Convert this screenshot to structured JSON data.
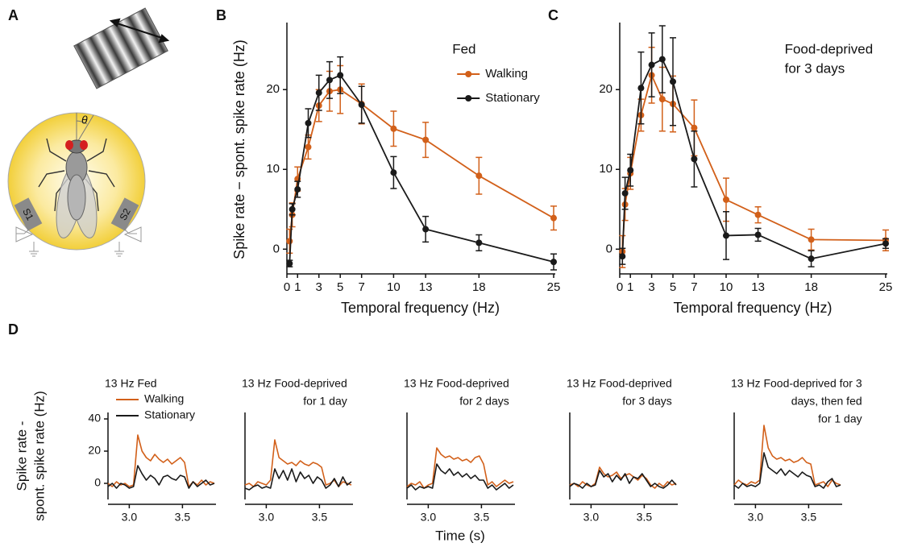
{
  "illustration": {
    "label": "A",
    "sensor_1": "S1",
    "sensor_2": "S2",
    "angle": "θ"
  },
  "chart_data": [
    {
      "label": "B",
      "type": "line",
      "x": [
        0.25,
        0.5,
        1,
        2,
        3,
        4,
        5,
        7,
        10,
        13,
        18,
        25
      ],
      "xlim": [
        0,
        25
      ],
      "xticks": [
        0,
        1,
        3,
        5,
        7,
        10,
        13,
        18,
        25
      ],
      "ylim": [
        -3,
        28
      ],
      "yticks": [
        0,
        10,
        20
      ],
      "xlabel": "Temporal frequency (Hz)",
      "ylabel": [
        "Spike rate − spont. spike rate (Hz)"
      ],
      "annotation": [
        "Fed"
      ],
      "series": [
        {
          "name": "Walking",
          "color": "#d2601a",
          "values": [
            1,
            4.3,
            8.8,
            12.8,
            18,
            19.8,
            20,
            18.2,
            15.1,
            13.7,
            9.2,
            3.9
          ],
          "errors": [
            1.5,
            1.5,
            1.5,
            1.5,
            2,
            2.5,
            3,
            2.5,
            2.2,
            2.2,
            2.3,
            1.5
          ]
        },
        {
          "name": "Stationary",
          "color": "#1a1a1a",
          "values": [
            -1.8,
            5,
            7.5,
            15.8,
            19.6,
            21.2,
            21.8,
            18.1,
            9.6,
            2.5,
            0.8,
            -1.6
          ],
          "errors": [
            0.4,
            0.7,
            1,
            1.8,
            2.2,
            2.3,
            2.3,
            2.3,
            2,
            1.6,
            1,
            1
          ]
        }
      ]
    },
    {
      "label": "C",
      "type": "line",
      "x": [
        0.25,
        0.5,
        1,
        2,
        3,
        4,
        5,
        7,
        10,
        13,
        18,
        25
      ],
      "xlim": [
        0,
        25
      ],
      "xticks": [
        0,
        1,
        3,
        5,
        7,
        10,
        13,
        18,
        25
      ],
      "ylim": [
        -3,
        28
      ],
      "yticks": [
        0,
        10,
        20
      ],
      "xlabel": "Temporal frequency (Hz)",
      "annotation": [
        "Food-deprived",
        "for 3 days"
      ],
      "series": [
        {
          "color": "#d2601a",
          "values": [
            -0.3,
            5.6,
            9.5,
            16.8,
            21.8,
            18.8,
            18.2,
            15.2,
            6.2,
            4.3,
            1.2,
            1.1
          ],
          "errors": [
            2,
            2,
            2,
            2,
            3.5,
            4,
            3.5,
            3.5,
            2.7,
            1,
            1.3,
            1.3
          ]
        },
        {
          "color": "#1a1a1a",
          "values": [
            -0.9,
            7,
            9.9,
            20.2,
            23.1,
            23.8,
            21,
            11.3,
            1.7,
            1.8,
            -1.2,
            0.7
          ],
          "errors": [
            1,
            2,
            2,
            4.5,
            4,
            4.2,
            5.5,
            3.5,
            3,
            0.8,
            1,
            0.6
          ]
        }
      ]
    },
    {
      "label": "D",
      "type": "line",
      "title": [
        "13 Hz Fed"
      ],
      "x": [
        2.8,
        2.84,
        2.88,
        2.92,
        2.96,
        3.0,
        3.04,
        3.08,
        3.12,
        3.16,
        3.2,
        3.24,
        3.28,
        3.32,
        3.36,
        3.4,
        3.44,
        3.48,
        3.52,
        3.56,
        3.6,
        3.64,
        3.68,
        3.72,
        3.76,
        3.8
      ],
      "xlim": [
        2.8,
        3.8
      ],
      "xticks": [
        {
          "value": 3,
          "label": "3.0"
        },
        {
          "value": 3.5,
          "label": "3.5"
        }
      ],
      "ylim": [
        -8,
        42
      ],
      "yticks": [
        0,
        20,
        40
      ],
      "ylabel": [
        "Spike rate -",
        "spont. spike rate (Hz)"
      ],
      "series": [
        {
          "name": "Walking",
          "color": "#d2601a",
          "values": [
            0,
            -2,
            1,
            -1,
            0,
            -2,
            -1,
            30,
            20,
            16,
            14,
            18,
            15,
            13,
            15,
            12,
            14,
            16,
            13,
            -2,
            1,
            -1,
            2,
            -1,
            1,
            0
          ]
        },
        {
          "name": "Stationary",
          "color": "#1a1a1a",
          "values": [
            -2,
            0,
            -3,
            0,
            -1,
            -3,
            -2,
            11,
            6,
            2,
            5,
            3,
            -1,
            4,
            5,
            3,
            2,
            5,
            4,
            -3,
            1,
            -2,
            0,
            2,
            -1,
            0
          ]
        }
      ]
    },
    {
      "type": "line",
      "title": [
        "13 Hz Food-deprived",
        "for 1 day"
      ],
      "x": [
        2.8,
        2.84,
        2.88,
        2.92,
        2.96,
        3.0,
        3.04,
        3.08,
        3.12,
        3.16,
        3.2,
        3.24,
        3.28,
        3.32,
        3.36,
        3.4,
        3.44,
        3.48,
        3.52,
        3.56,
        3.6,
        3.64,
        3.68,
        3.72,
        3.76,
        3.8
      ],
      "xlim": [
        2.8,
        3.8
      ],
      "xticks": [
        {
          "value": 3,
          "label": "3.0"
        },
        {
          "value": 3.5,
          "label": "3.5"
        }
      ],
      "ylim": [
        -8,
        42
      ],
      "series": [
        {
          "color": "#d2601a",
          "values": [
            -1,
            0,
            -2,
            1,
            0,
            -1,
            2,
            27,
            16,
            14,
            12,
            13,
            11,
            14,
            12,
            11,
            13,
            12,
            10,
            -1,
            0,
            2,
            -2,
            1,
            0,
            -1
          ]
        },
        {
          "color": "#1a1a1a",
          "values": [
            -3,
            -4,
            -2,
            -1,
            -3,
            -2,
            -3,
            9,
            3,
            8,
            2,
            9,
            1,
            7,
            3,
            5,
            0,
            4,
            2,
            -3,
            -1,
            3,
            -2,
            4,
            -1,
            1
          ]
        }
      ]
    },
    {
      "type": "line",
      "title": [
        "13 Hz Food-deprived",
        "for 2 days"
      ],
      "xlabel": "Time (s)",
      "x": [
        2.8,
        2.84,
        2.88,
        2.92,
        2.96,
        3.0,
        3.04,
        3.08,
        3.12,
        3.16,
        3.2,
        3.24,
        3.28,
        3.32,
        3.36,
        3.4,
        3.44,
        3.48,
        3.52,
        3.56,
        3.6,
        3.64,
        3.68,
        3.72,
        3.76,
        3.8
      ],
      "xlim": [
        2.8,
        3.8
      ],
      "xticks": [
        {
          "value": 3,
          "label": "3.0"
        },
        {
          "value": 3.5,
          "label": "3.5"
        }
      ],
      "ylim": [
        -8,
        42
      ],
      "series": [
        {
          "color": "#d2601a",
          "values": [
            -2,
            0,
            -1,
            1,
            -3,
            -1,
            0,
            22,
            18,
            16,
            17,
            15,
            16,
            14,
            15,
            13,
            16,
            17,
            12,
            -1,
            1,
            -2,
            0,
            2,
            0,
            1
          ]
        },
        {
          "color": "#1a1a1a",
          "values": [
            -3,
            -1,
            -4,
            -2,
            -3,
            -2,
            -3,
            12,
            8,
            6,
            9,
            5,
            7,
            4,
            6,
            3,
            5,
            2,
            2,
            -3,
            -1,
            -4,
            -2,
            0,
            -3,
            -1
          ]
        }
      ]
    },
    {
      "type": "line",
      "title": [
        "13 Hz Food-deprived",
        "for 3 days"
      ],
      "x": [
        2.8,
        2.84,
        2.88,
        2.92,
        2.96,
        3.0,
        3.04,
        3.08,
        3.12,
        3.16,
        3.2,
        3.24,
        3.28,
        3.32,
        3.36,
        3.4,
        3.44,
        3.48,
        3.52,
        3.56,
        3.6,
        3.64,
        3.68,
        3.72,
        3.76,
        3.8
      ],
      "xlim": [
        2.8,
        3.8
      ],
      "xticks": [
        {
          "value": 3,
          "label": "3.0"
        },
        {
          "value": 3.5,
          "label": "3.5"
        }
      ],
      "ylim": [
        -8,
        42
      ],
      "series": [
        {
          "color": "#d2601a",
          "values": [
            -1,
            0,
            -2,
            1,
            -1,
            -2,
            0,
            10,
            6,
            4,
            5,
            7,
            3,
            5,
            6,
            4,
            2,
            5,
            3,
            -1,
            -3,
            0,
            -2,
            1,
            -1,
            0
          ]
        },
        {
          "color": "#1a1a1a",
          "values": [
            -2,
            0,
            -1,
            -3,
            0,
            -2,
            -1,
            8,
            4,
            6,
            1,
            5,
            2,
            6,
            0,
            4,
            3,
            6,
            2,
            -2,
            0,
            -2,
            -3,
            -1,
            2,
            -1
          ]
        }
      ]
    },
    {
      "type": "line",
      "title": [
        "13 Hz Food-deprived for 3",
        "days, then fed",
        "for 1 day"
      ],
      "x": [
        2.8,
        2.84,
        2.88,
        2.92,
        2.96,
        3.0,
        3.04,
        3.08,
        3.12,
        3.16,
        3.2,
        3.24,
        3.28,
        3.32,
        3.36,
        3.4,
        3.44,
        3.48,
        3.52,
        3.56,
        3.6,
        3.64,
        3.68,
        3.72,
        3.76,
        3.8
      ],
      "xlim": [
        2.8,
        3.8
      ],
      "xticks": [
        {
          "value": 3,
          "label": "3.0"
        },
        {
          "value": 3.5,
          "label": "3.5"
        }
      ],
      "ylim": [
        -8,
        42
      ],
      "series": [
        {
          "color": "#d2601a",
          "values": [
            -1,
            2,
            0,
            -1,
            1,
            0,
            2,
            36,
            22,
            17,
            15,
            16,
            14,
            15,
            13,
            14,
            16,
            13,
            12,
            -1,
            0,
            1,
            -2,
            2,
            0,
            -1
          ]
        },
        {
          "color": "#1a1a1a",
          "values": [
            -1,
            -3,
            0,
            -2,
            -1,
            -2,
            0,
            19,
            10,
            8,
            6,
            9,
            5,
            8,
            6,
            4,
            7,
            5,
            4,
            -2,
            -1,
            -3,
            1,
            3,
            -2,
            -1
          ]
        }
      ]
    }
  ]
}
